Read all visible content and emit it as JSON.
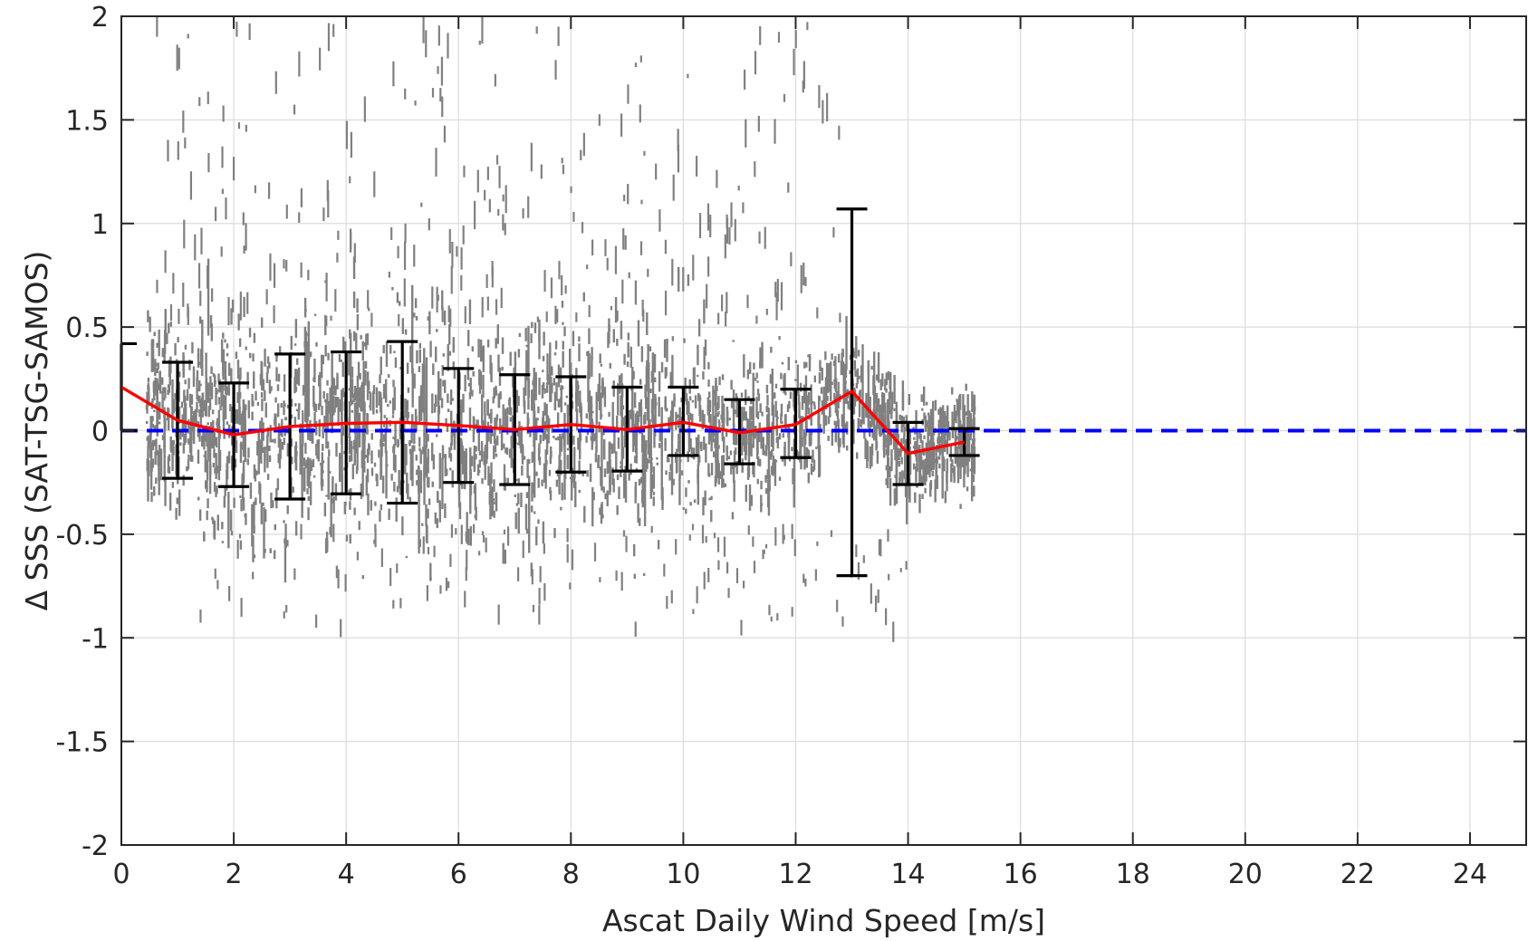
{
  "chart_data": {
    "type": "scatter",
    "xlabel": "Ascat Daily Wind Speed [m/s]",
    "ylabel": "Δ SSS (SAT-TSG-SAMOS)",
    "xlim": [
      0,
      25
    ],
    "ylim": [
      -2,
      2
    ],
    "x_ticks": [
      "0",
      "2",
      "4",
      "6",
      "8",
      "10",
      "12",
      "14",
      "16",
      "18",
      "20",
      "22",
      "24"
    ],
    "y_ticks": [
      "2",
      "1.5",
      "1",
      "0.5",
      "0",
      "-0.5",
      "-1",
      "-1.5",
      "-2"
    ],
    "grid": true,
    "scatter_color": "#808080",
    "mean_line": {
      "color": "#ff0000",
      "x": [
        0,
        1,
        2,
        3,
        4,
        5,
        6,
        7,
        8,
        9,
        10,
        11,
        12,
        13,
        14,
        15
      ],
      "y": [
        0.21,
        0.05,
        -0.02,
        0.02,
        0.035,
        0.04,
        0.025,
        0.005,
        0.03,
        0.005,
        0.04,
        -0.01,
        0.03,
        0.19,
        -0.11,
        -0.055
      ]
    },
    "error_bars": {
      "color": "#000000",
      "x": [
        0,
        1,
        2,
        3,
        4,
        5,
        6,
        7,
        8,
        9,
        10,
        11,
        12,
        13,
        14,
        15
      ],
      "lower": [
        0.0,
        -0.23,
        -0.27,
        -0.33,
        -0.305,
        -0.35,
        -0.25,
        -0.26,
        -0.2,
        -0.195,
        -0.12,
        -0.16,
        -0.13,
        -0.7,
        -0.26,
        -0.12
      ],
      "upper": [
        0.42,
        0.33,
        0.23,
        0.37,
        0.38,
        0.43,
        0.3,
        0.27,
        0.26,
        0.21,
        0.21,
        0.15,
        0.2,
        1.07,
        0.04,
        0.01
      ]
    },
    "reference_line": {
      "y": 0,
      "color": "#0000ff",
      "style": "dashed"
    },
    "scatter_summary": {
      "x_range": [
        0,
        15.2
      ],
      "core_band": [
        -0.3,
        0.5
      ],
      "outlier_range": [
        -0.95,
        2.0
      ]
    }
  }
}
